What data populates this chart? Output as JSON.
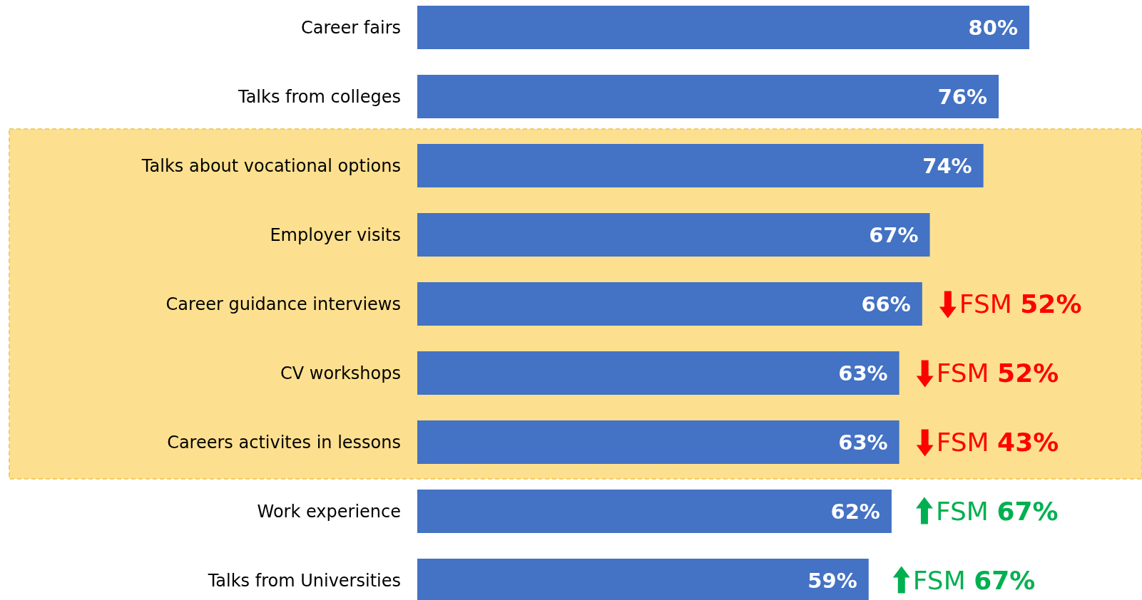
{
  "chart_data": {
    "type": "bar",
    "orientation": "horizontal",
    "categories": [
      "Career fairs",
      "Talks from colleges",
      "Talks about vocational options",
      "Employer visits",
      "Career guidance interviews",
      "CV workshops",
      "Careers activites in lessons",
      "Work experience",
      "Talks from Universities"
    ],
    "values": [
      80,
      76,
      74,
      67,
      66,
      63,
      63,
      62,
      59
    ],
    "color": "#4472c4",
    "data_labels": true,
    "value_labels": [
      "80%",
      "76%",
      "74%",
      "67%",
      "66%",
      "63%",
      "63%",
      "62%",
      "59%"
    ],
    "bands": [
      {
        "axis": "y",
        "from": "Talks about vocational options",
        "to": "Careers activites in lessons",
        "color": "#fde08f"
      }
    ],
    "annotations": [
      "FSM 52%",
      "FSM 52%",
      "FSM 43%",
      "FSM 67%",
      "FSM 67%"
    ]
  }
}
